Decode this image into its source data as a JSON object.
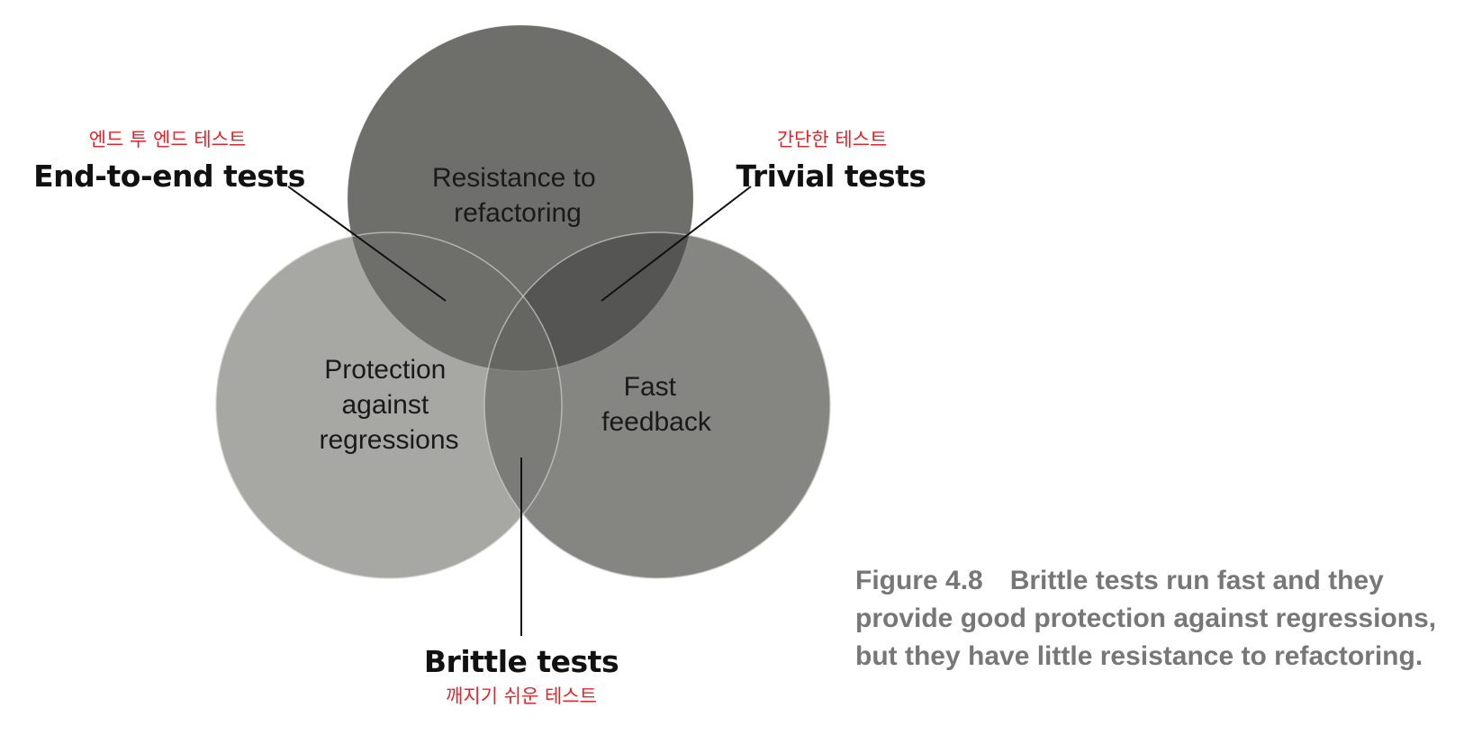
{
  "circles": {
    "top": {
      "label_lines": [
        "Resistance to",
        "refactoring"
      ],
      "color": "#6e6e6a"
    },
    "left": {
      "label_lines": [
        "Protection",
        "against",
        "regressions"
      ],
      "color": "#a7a7a3"
    },
    "right": {
      "label_lines": [
        "Fast",
        "feedback"
      ],
      "color": "#858581"
    }
  },
  "overlap_colors": {
    "top_left": "#6e6e6a",
    "top_right": "#555553",
    "left_right": "#7b7b77",
    "center": "#656562"
  },
  "callouts": {
    "end_to_end": {
      "label": "End-to-end tests",
      "translation": "엔드 투 엔드 테스트"
    },
    "trivial": {
      "label": "Trivial tests",
      "translation": "간단한 테스트"
    },
    "brittle": {
      "label": "Brittle tests",
      "translation": "깨지기 쉬운 테스트"
    }
  },
  "caption": {
    "figure_number": "Figure 4.8",
    "line1": "Brittle tests run fast and they",
    "line2": "provide good protection against regressions,",
    "line3": "but they have little resistance to refactoring."
  },
  "colors": {
    "translation_text": "#e8242a",
    "caption_text": "#777777",
    "circle_border": "#d0d0cc"
  }
}
